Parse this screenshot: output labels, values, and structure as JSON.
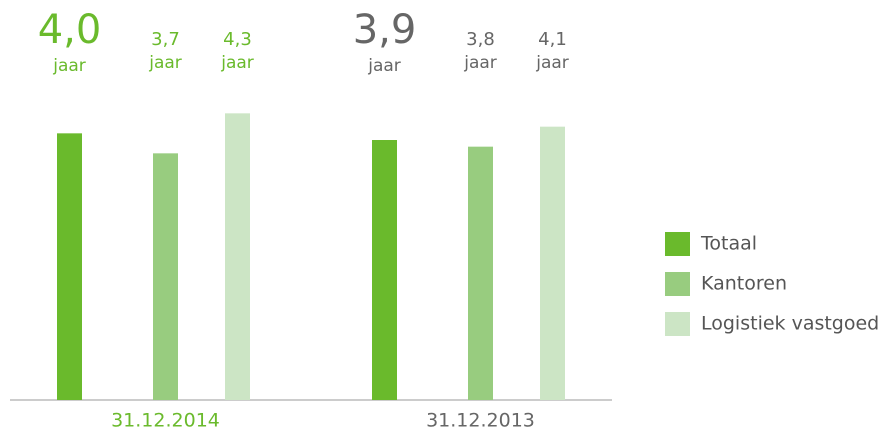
{
  "chart_data": {
    "type": "bar",
    "categories": [
      "31.12.2014",
      "31.12.2013"
    ],
    "category_colors": [
      "#6aba2c",
      "#666666"
    ],
    "unit": "jaar",
    "ylim": [
      0,
      6
    ],
    "series": [
      {
        "name": "Totaal",
        "color": "#6aba2c",
        "values": [
          4.0,
          3.9
        ],
        "value_labels": [
          "4,0",
          "3,9"
        ]
      },
      {
        "name": "Kantoren",
        "color": "#98cc7f",
        "values": [
          3.7,
          3.8
        ],
        "value_labels": [
          "3,7",
          "3,8"
        ]
      },
      {
        "name": "Logistiek vastgoed",
        "color": "#cce5c5",
        "values": [
          4.3,
          4.1
        ],
        "value_labels": [
          "4,3",
          "4,1"
        ]
      }
    ],
    "legend": "right"
  }
}
